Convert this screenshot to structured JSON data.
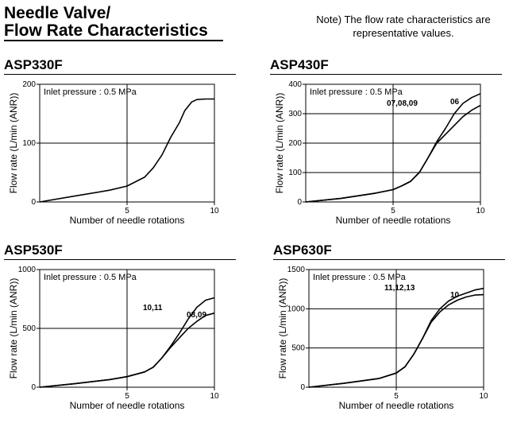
{
  "header": {
    "title_line1": "Needle Valve/",
    "title_line2": "Flow Rate Characteristics",
    "note_line1": "Note) The flow rate characteristics are",
    "note_line2": "representative values."
  },
  "chart_data": [
    {
      "type": "line",
      "title": "ASP330F",
      "annotation": "Inlet pressure : 0.5 MPa",
      "xlabel": "Number of needle rotations",
      "ylabel": "Flow rate (L/min (ANR))",
      "xlim": [
        0,
        10
      ],
      "ylim": [
        0,
        200
      ],
      "xticks": [
        5,
        10
      ],
      "yticks": [
        0,
        100,
        200
      ],
      "grid": true,
      "series": [
        {
          "label": "",
          "points": [
            [
              0,
              0
            ],
            [
              2,
              10
            ],
            [
              4,
              20
            ],
            [
              5,
              27
            ],
            [
              6,
              42
            ],
            [
              6.5,
              58
            ],
            [
              7,
              80
            ],
            [
              7.5,
              110
            ],
            [
              8,
              135
            ],
            [
              8.3,
              155
            ],
            [
              8.7,
              170
            ],
            [
              9,
              174
            ],
            [
              9.5,
              175
            ],
            [
              10,
              175
            ]
          ]
        }
      ]
    },
    {
      "type": "line",
      "title": "ASP430F",
      "annotation": "Inlet pressure : 0.5 MPa",
      "xlabel": "Number of needle rotations",
      "ylabel": "Flow rate (L/min (ANR))",
      "xlim": [
        0,
        10
      ],
      "ylim": [
        0,
        400
      ],
      "xticks": [
        5,
        10
      ],
      "yticks": [
        0,
        100,
        200,
        300,
        400
      ],
      "grid": true,
      "series": [
        {
          "label": "07,08,09",
          "points": [
            [
              0,
              0
            ],
            [
              2,
              12
            ],
            [
              4,
              30
            ],
            [
              5,
              42
            ],
            [
              5.5,
              55
            ],
            [
              6,
              70
            ],
            [
              6.5,
              100
            ],
            [
              7,
              150
            ],
            [
              7.5,
              205
            ],
            [
              8,
              250
            ],
            [
              8.5,
              300
            ],
            [
              9,
              335
            ],
            [
              9.5,
              355
            ],
            [
              10,
              368
            ]
          ]
        },
        {
          "label": "06",
          "points": [
            [
              0,
              0
            ],
            [
              2,
              12
            ],
            [
              4,
              30
            ],
            [
              5,
              42
            ],
            [
              5.5,
              55
            ],
            [
              6,
              70
            ],
            [
              6.5,
              100
            ],
            [
              7,
              150
            ],
            [
              7.5,
              200
            ],
            [
              8,
              230
            ],
            [
              8.5,
              260
            ],
            [
              9,
              290
            ],
            [
              9.5,
              312
            ],
            [
              10,
              328
            ]
          ]
        }
      ]
    },
    {
      "type": "line",
      "title": "ASP530F",
      "annotation": "Inlet pressure : 0.5 MPa",
      "xlabel": "Number of needle rotations",
      "ylabel": "Flow rate (L/min (ANR))",
      "xlim": [
        0,
        10
      ],
      "ylim": [
        0,
        1000
      ],
      "xticks": [
        5,
        10
      ],
      "yticks": [
        0,
        500,
        1000
      ],
      "grid": true,
      "series": [
        {
          "label": "10,11",
          "points": [
            [
              0,
              0
            ],
            [
              2,
              30
            ],
            [
              4,
              65
            ],
            [
              5,
              90
            ],
            [
              6,
              130
            ],
            [
              6.5,
              170
            ],
            [
              7,
              250
            ],
            [
              7.5,
              350
            ],
            [
              8,
              460
            ],
            [
              8.5,
              580
            ],
            [
              9,
              680
            ],
            [
              9.5,
              740
            ],
            [
              10,
              760
            ]
          ]
        },
        {
          "label": "08,09",
          "points": [
            [
              0,
              0
            ],
            [
              2,
              30
            ],
            [
              4,
              65
            ],
            [
              5,
              90
            ],
            [
              6,
              130
            ],
            [
              6.5,
              170
            ],
            [
              7,
              250
            ],
            [
              7.5,
              340
            ],
            [
              8,
              420
            ],
            [
              8.5,
              500
            ],
            [
              9,
              560
            ],
            [
              9.5,
              610
            ],
            [
              10,
              630
            ]
          ]
        }
      ]
    },
    {
      "type": "line",
      "title": "ASP630F",
      "annotation": "Inlet pressure : 0.5 MPa",
      "xlabel": "Number of needle rotations",
      "ylabel": "Flow rate (L/min (ANR))",
      "xlim": [
        0,
        10
      ],
      "ylim": [
        0,
        1500
      ],
      "xticks": [
        5,
        10
      ],
      "yticks": [
        0,
        500,
        1000,
        1500
      ],
      "grid": true,
      "series": [
        {
          "label": "11,12,13",
          "points": [
            [
              0,
              0
            ],
            [
              2,
              50
            ],
            [
              4,
              110
            ],
            [
              5,
              180
            ],
            [
              5.5,
              260
            ],
            [
              6,
              420
            ],
            [
              6.5,
              620
            ],
            [
              7,
              850
            ],
            [
              7.5,
              1000
            ],
            [
              8,
              1100
            ],
            [
              8.5,
              1160
            ],
            [
              9,
              1200
            ],
            [
              9.5,
              1240
            ],
            [
              10,
              1260
            ]
          ]
        },
        {
          "label": "10",
          "points": [
            [
              0,
              0
            ],
            [
              2,
              50
            ],
            [
              4,
              110
            ],
            [
              5,
              180
            ],
            [
              5.5,
              260
            ],
            [
              6,
              420
            ],
            [
              6.5,
              620
            ],
            [
              7,
              830
            ],
            [
              7.5,
              960
            ],
            [
              8,
              1050
            ],
            [
              8.5,
              1110
            ],
            [
              9,
              1150
            ],
            [
              9.5,
              1175
            ],
            [
              10,
              1180
            ]
          ]
        }
      ]
    }
  ]
}
